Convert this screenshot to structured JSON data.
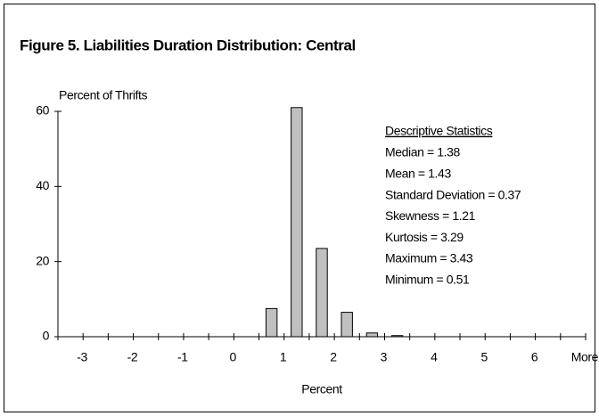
{
  "chart_data": {
    "type": "bar",
    "title": "Figure 5.  Liabilities Duration Distribution: Central",
    "y_label": "Percent of Thrifts",
    "x_label": "Percent",
    "categories": [
      "-3",
      null,
      "-2",
      null,
      "-1",
      null,
      "0",
      null,
      "1",
      null,
      "2",
      null,
      "3",
      null,
      "4",
      null,
      "5",
      null,
      "6",
      null,
      "More"
    ],
    "values": [
      0,
      0,
      0,
      0,
      0,
      0,
      0,
      0,
      7.5,
      61,
      23.5,
      6.5,
      1,
      0.3,
      0,
      0,
      0,
      0,
      0,
      0,
      0
    ],
    "color": "#c0c0c0",
    "ylim": [
      0,
      60
    ],
    "yticks": [
      0,
      20,
      40,
      60
    ],
    "grid": false,
    "annotations": {
      "heading": "Descriptive Statistics",
      "lines": [
        "Median  = 1.38",
        "Mean = 1.43",
        "Standard Deviation = 0.37",
        "Skewness = 1.21",
        "Kurtosis = 3.29",
        "Maximum = 3.43",
        "Minimum = 0.51"
      ]
    }
  }
}
